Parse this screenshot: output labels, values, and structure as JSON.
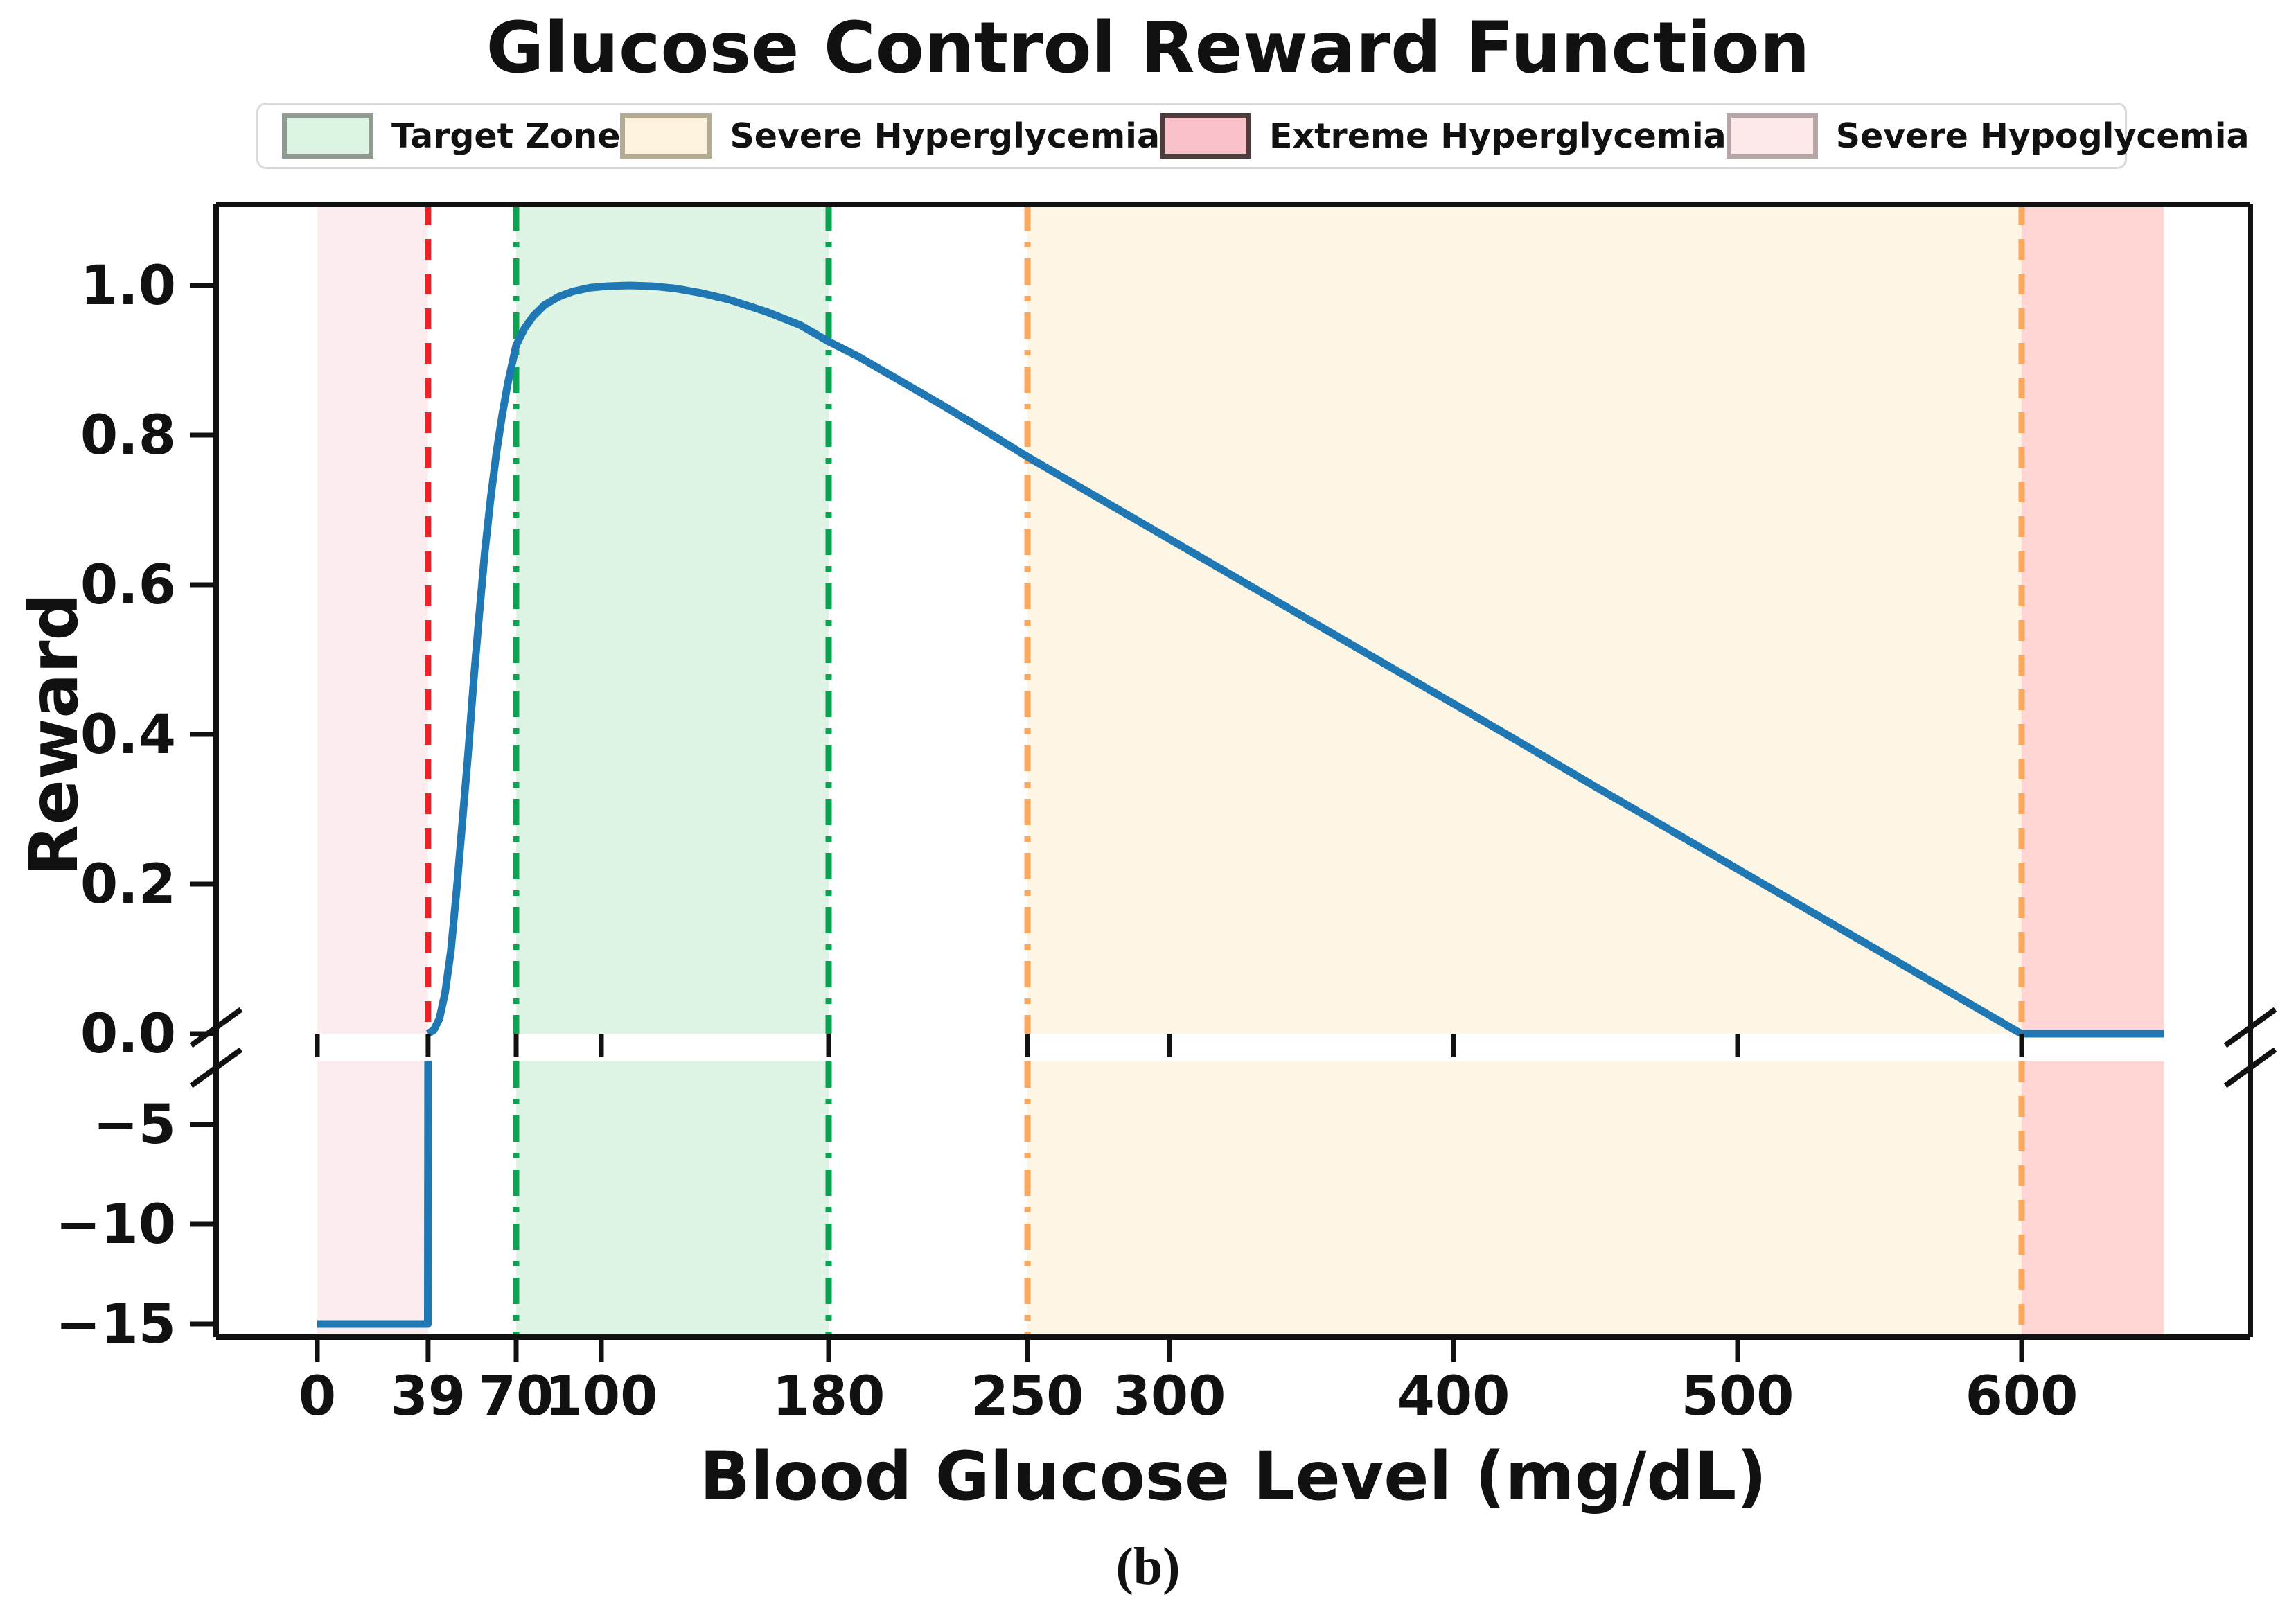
{
  "title": "Glucose Control Reward Function",
  "caption": "(b)",
  "axes": {
    "ylabel": "Reward",
    "xlabel": "Blood Glucose Level (mg/dL)"
  },
  "legend": {
    "items": [
      {
        "label": "Target Zone",
        "fill": "#dcf5e3",
        "border": "#8f9a90"
      },
      {
        "label": "Severe Hyperglycemia",
        "fill": "#fdf3dd",
        "border": "#b3ab94"
      },
      {
        "label": "Extreme Hyperglycemia",
        "fill": "#f9c2c9",
        "border": "#4d3d3f"
      },
      {
        "label": "Severe Hypoglycemia",
        "fill": "#fde9ea",
        "border": "#b7a6a7"
      }
    ]
  },
  "chart_data": {
    "type": "line",
    "title": "Glucose Control Reward Function",
    "xlabel": "Blood Glucose Level (mg/dL)",
    "ylabel": "Reward",
    "broken_y_axis": true,
    "x_ticks": [
      0,
      39,
      70,
      100,
      180,
      250,
      300,
      400,
      500,
      600
    ],
    "x_tick_labels": [
      "0",
      "39",
      "70",
      "100",
      "180",
      "250",
      "300",
      "400",
      "500",
      "600"
    ],
    "xlim": [
      -36,
      681
    ],
    "top_panel": {
      "ylim": [
        0,
        1.1
      ],
      "yticks": [
        1.0,
        0.8,
        0.6,
        0.4,
        0.2,
        0.0
      ],
      "ytick_labels": [
        "1.0",
        "0.8",
        "0.6",
        "0.4",
        "0.2",
        "0.0"
      ]
    },
    "bottom_panel": {
      "ylim": [
        -15.7,
        -1.8
      ],
      "yticks": [
        -5,
        -10,
        -15
      ],
      "ytick_labels": [
        "−5",
        "−10",
        "−15"
      ]
    },
    "regions": [
      {
        "name": "severe-hypoglycemia-zone",
        "x0": 0,
        "x1": 39,
        "color": "#fdeced"
      },
      {
        "name": "target-zone",
        "x0": 70,
        "x1": 180,
        "color": "#def5e5"
      },
      {
        "name": "severe-hyperglycemia-zone",
        "x0": 250,
        "x1": 600,
        "color": "#fdf6e4"
      },
      {
        "name": "extreme-hyperglycemia-zone",
        "x0": 600,
        "x1": 650,
        "color": "#ffd6d3"
      }
    ],
    "thresholds": [
      {
        "x": 39,
        "color": "#ee2127",
        "style": "dashed",
        "name": "hypoglycemia-threshold"
      },
      {
        "x": 70,
        "color": "#0aa351",
        "style": "dashdot",
        "name": "target-low-threshold"
      },
      {
        "x": 180,
        "color": "#0aa351",
        "style": "dashdot",
        "name": "target-high-threshold"
      },
      {
        "x": 250,
        "color": "#fba85c",
        "style": "dashdot",
        "name": "severe-hyper-threshold"
      },
      {
        "x": 600,
        "color": "#fba85c",
        "style": "dashed",
        "name": "extreme-hyper-threshold"
      }
    ],
    "series": [
      {
        "name": "reward-curve",
        "color": "#1f77b4",
        "points_top": [
          [
            39,
            0
          ],
          [
            41,
            0.005
          ],
          [
            43,
            0.02
          ],
          [
            45,
            0.055
          ],
          [
            47,
            0.11
          ],
          [
            49,
            0.19
          ],
          [
            51,
            0.28
          ],
          [
            53,
            0.37
          ],
          [
            55,
            0.47
          ],
          [
            57,
            0.56
          ],
          [
            59,
            0.645
          ],
          [
            61,
            0.715
          ],
          [
            63,
            0.775
          ],
          [
            65,
            0.825
          ],
          [
            67,
            0.868
          ],
          [
            70,
            0.92
          ],
          [
            73,
            0.943
          ],
          [
            76,
            0.959
          ],
          [
            80,
            0.974
          ],
          [
            85,
            0.985
          ],
          [
            90,
            0.992
          ],
          [
            96,
            0.997
          ],
          [
            102,
            0.999
          ],
          [
            110,
            1.0
          ],
          [
            118,
            0.999
          ],
          [
            126,
            0.996
          ],
          [
            135,
            0.99
          ],
          [
            145,
            0.981
          ],
          [
            158,
            0.965
          ],
          [
            170,
            0.947
          ],
          [
            180,
            0.925
          ],
          [
            190,
            0.906
          ],
          [
            205,
            0.873
          ],
          [
            220,
            0.84
          ],
          [
            235,
            0.806
          ],
          [
            250,
            0.771
          ],
          [
            270,
            0.727
          ],
          [
            300,
            0.661
          ],
          [
            330,
            0.595
          ],
          [
            360,
            0.529
          ],
          [
            390,
            0.463
          ],
          [
            420,
            0.397
          ],
          [
            450,
            0.33
          ],
          [
            480,
            0.264
          ],
          [
            510,
            0.198
          ],
          [
            540,
            0.132
          ],
          [
            570,
            0.066
          ],
          [
            598,
            0.004
          ],
          [
            600,
            0
          ],
          [
            650,
            0
          ]
        ],
        "points_bottom": [
          [
            0,
            -15
          ],
          [
            38.9,
            -15
          ],
          [
            39,
            -1.8
          ]
        ]
      }
    ]
  }
}
